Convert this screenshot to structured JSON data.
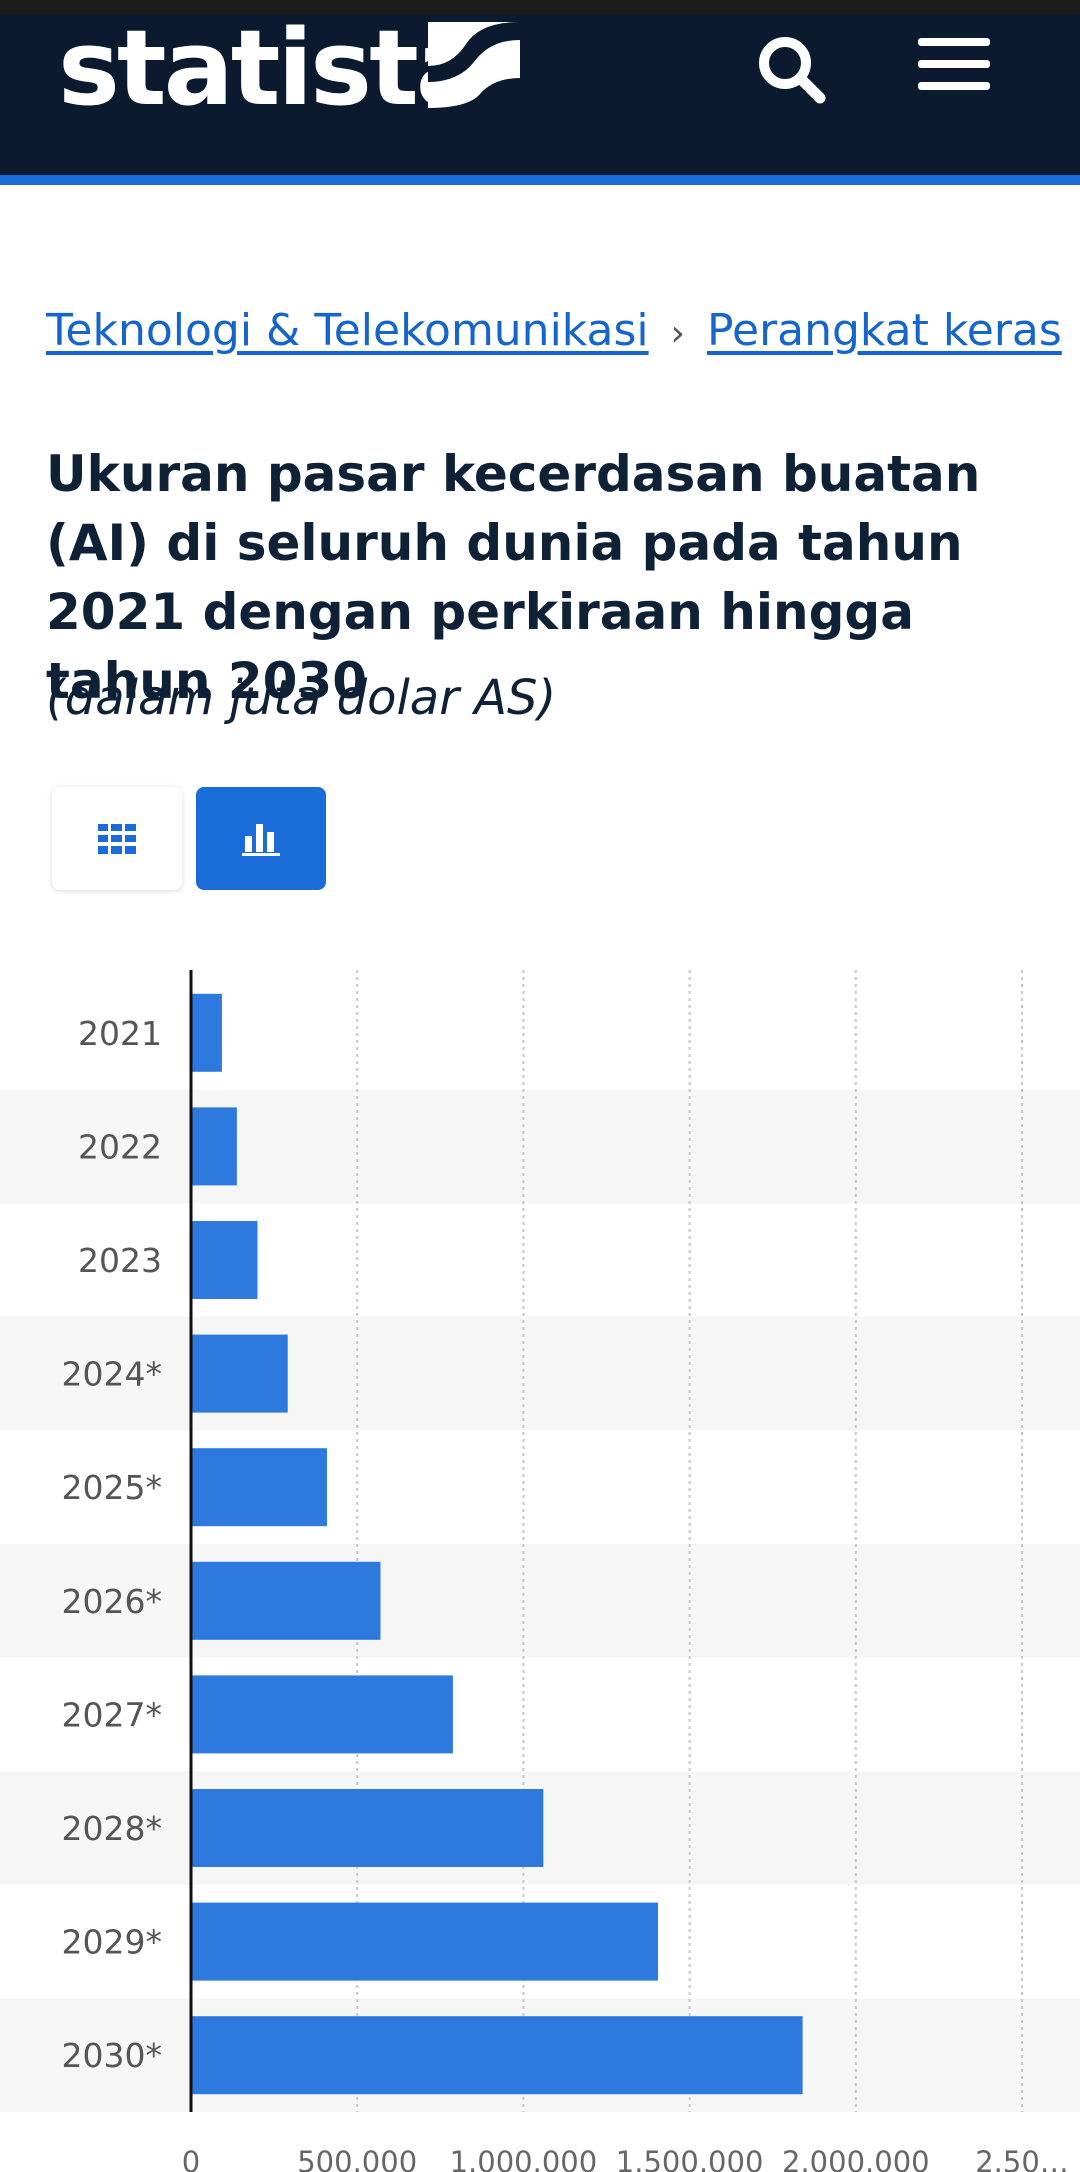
{
  "header": {
    "logo_text": "statista",
    "colors": {
      "background": "#0b1a2e",
      "accent": "#1a6dd9"
    },
    "icons": [
      "search-icon",
      "menu-icon"
    ]
  },
  "breadcrumb": {
    "items": [
      {
        "label": "Teknologi & Telekomunikasi"
      },
      {
        "label": "Perangkat keras"
      }
    ],
    "separator": "›"
  },
  "page": {
    "title": "Ukuran pasar kecerdasan buatan (AI) di seluruh dunia pada tahun 2021 dengan perkiraan hingga tahun 2030",
    "subtitle": "(dalam juta dolar AS)"
  },
  "view_toggle": {
    "table_icon": "table-grid-icon",
    "chart_icon": "bar-chart-icon",
    "active": "chart"
  },
  "chart_data": {
    "type": "bar",
    "orientation": "horizontal",
    "categories": [
      "2021",
      "2022",
      "2023",
      "2024*",
      "2025*",
      "2026*",
      "2027*",
      "2028*",
      "2029*",
      "2030*"
    ],
    "values": [
      93000,
      138000,
      200000,
      291000,
      409000,
      570000,
      788000,
      1060000,
      1405000,
      1840000
    ],
    "x_ticks": [
      "0",
      "500.000",
      "1.000.000",
      "1.500.000",
      "2.000.000",
      "2.50…"
    ],
    "xlim": [
      0,
      2500000
    ],
    "grid": true,
    "bar_color": "#2d79dd"
  }
}
